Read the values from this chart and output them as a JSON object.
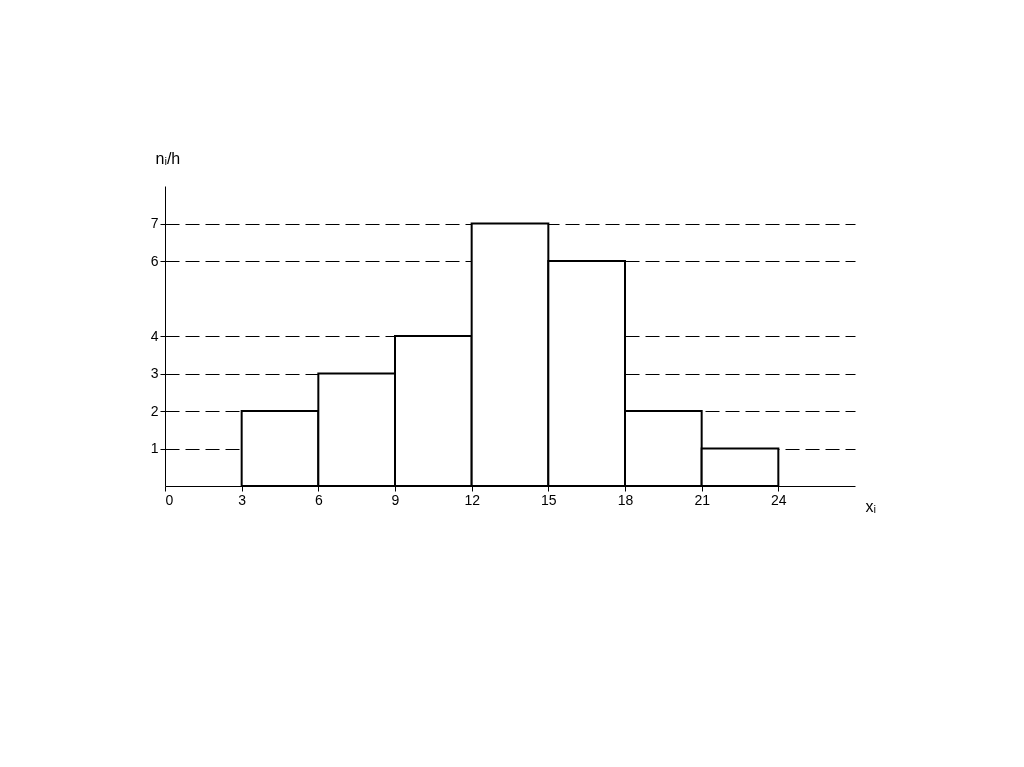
{
  "chart_data": {
    "type": "histogram",
    "bins": [
      3,
      6,
      9,
      12,
      15,
      18,
      21,
      24
    ],
    "values": [
      2,
      3,
      4,
      7,
      6,
      2,
      1
    ],
    "xlabel": "xᵢ",
    "ylabel": "nᵢ/h",
    "xlim": [
      0,
      27
    ],
    "ylim": [
      0,
      8
    ],
    "xticks": [
      0,
      3,
      6,
      9,
      12,
      15,
      18,
      21,
      24
    ],
    "yticks": [
      1,
      2,
      3,
      4,
      6,
      7
    ],
    "grid": "y",
    "line_style": "dashed"
  }
}
